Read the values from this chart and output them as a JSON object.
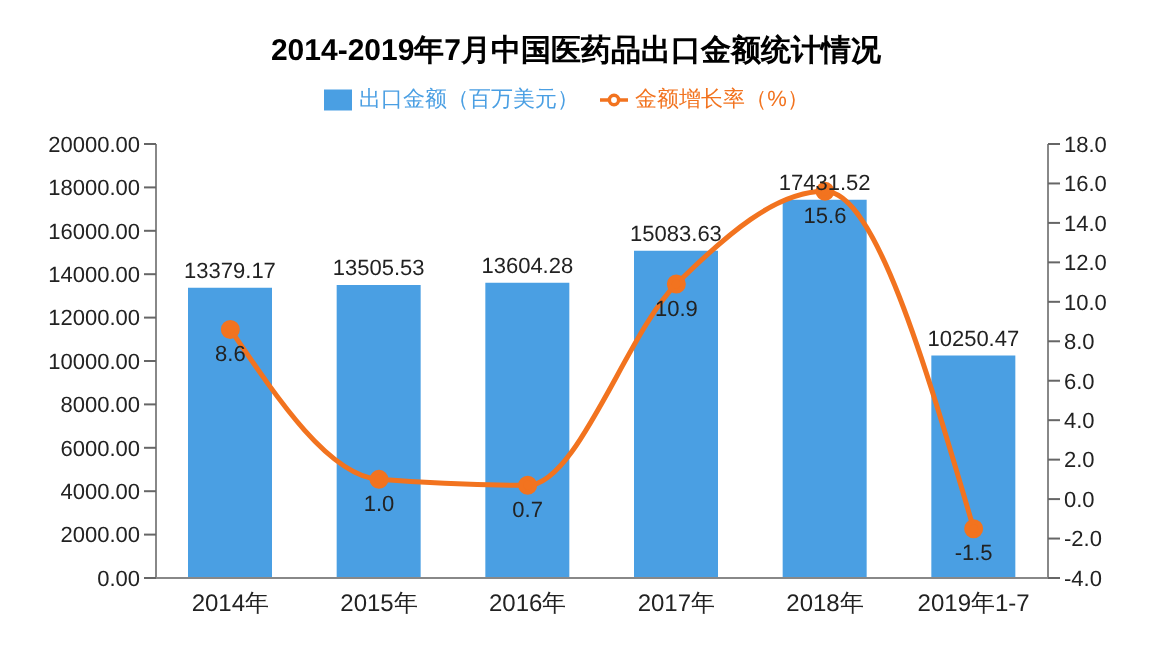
{
  "chart_data": {
    "type": "bar",
    "title": "2014-2019年7月中国医药品出口金额统计情况",
    "categories": [
      "2014年",
      "2015年",
      "2016年",
      "2017年",
      "2018年",
      "2019年1-7"
    ],
    "series": [
      {
        "name": "出口金额（百万美元）",
        "color": "#4a9fe3",
        "values": [
          13379.17,
          13505.53,
          13604.28,
          15083.63,
          17431.52,
          10250.47
        ]
      },
      {
        "name": "金额增长率（%）",
        "type": "line",
        "axis": "y2",
        "color": "#f2731f",
        "values": [
          8.6,
          1.0,
          0.7,
          10.9,
          15.6,
          -1.5
        ],
        "value_labels": [
          "8.6",
          "1.0",
          "0.7",
          "10.9",
          "15.6",
          "-1.5"
        ]
      }
    ],
    "ylim": [
      0,
      20000
    ],
    "yticks": [
      {
        "value": 0,
        "label": "0.00"
      },
      {
        "value": 2000,
        "label": "2000.00"
      },
      {
        "value": 4000,
        "label": "4000.00"
      },
      {
        "value": 6000,
        "label": "6000.00"
      },
      {
        "value": 8000,
        "label": "8000.00"
      },
      {
        "value": 10000,
        "label": "10000.00"
      },
      {
        "value": 12000,
        "label": "12000.00"
      },
      {
        "value": 14000,
        "label": "14000.00"
      },
      {
        "value": 16000,
        "label": "16000.00"
      },
      {
        "value": 18000,
        "label": "18000.00"
      },
      {
        "value": 20000,
        "label": "20000.00"
      }
    ],
    "y2lim": [
      -4,
      18
    ],
    "y2ticks": [
      {
        "value": -4,
        "label": "-4.0"
      },
      {
        "value": -2,
        "label": "-2.0"
      },
      {
        "value": 0,
        "label": "0.0"
      },
      {
        "value": 2,
        "label": "2.0"
      },
      {
        "value": 4,
        "label": "4.0"
      },
      {
        "value": 6,
        "label": "6.0"
      },
      {
        "value": 8,
        "label": "8.0"
      },
      {
        "value": 10,
        "label": "10.0"
      },
      {
        "value": 12,
        "label": "12.0"
      },
      {
        "value": 14,
        "label": "14.0"
      },
      {
        "value": 16,
        "label": "16.0"
      },
      {
        "value": 18,
        "label": "18.0"
      }
    ],
    "legend": "top",
    "marker": "circle",
    "data_labels": true,
    "grid": false
  }
}
